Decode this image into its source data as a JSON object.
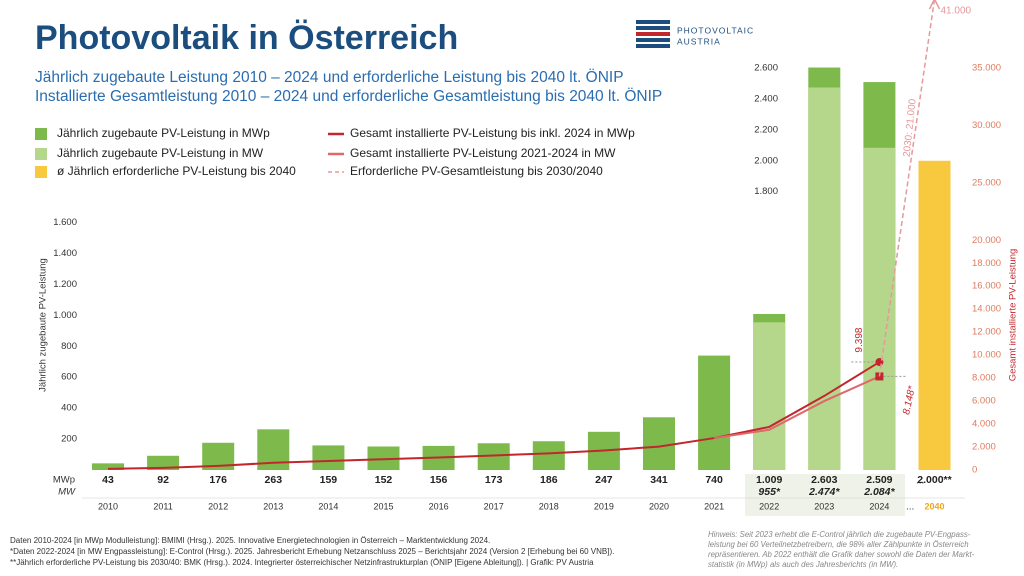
{
  "chart_data": {
    "type": "bar",
    "title": "Photovoltaik in Österreich",
    "subtitles": [
      "Jährlich zugebaute Leistung 2010 – 2024 und erforderliche Leistung bis 2040 lt. ÖNIP",
      "Installierte Gesamtleistung 2010 – 2024 und erforderliche Gesamtleistung bis 2040 lt. ÖNIP"
    ],
    "logo": [
      "PHOTOVOLTAIC",
      "AUSTRIA"
    ],
    "y_label": "Jährlich zugebaute PV-Leistung",
    "y2_label": "Gesamt installierte PV-Leistung",
    "categories": [
      "2010",
      "2011",
      "2012",
      "2013",
      "2014",
      "2015",
      "2016",
      "2017",
      "2018",
      "2019",
      "2020",
      "2021",
      "2022",
      "2023",
      "2024",
      "2040"
    ],
    "row_labels": [
      "MWp",
      "MW"
    ],
    "ellipsis": "...",
    "ylim": [
      0,
      2600
    ],
    "yticks": [
      {
        "value": 200,
        "label": "200"
      },
      {
        "value": 400,
        "label": "400"
      },
      {
        "value": 600,
        "label": "600"
      },
      {
        "value": 800,
        "label": "800"
      },
      {
        "value": 1000,
        "label": "1.000"
      },
      {
        "value": 1200,
        "label": "1.200"
      },
      {
        "value": 1400,
        "label": "1.400"
      },
      {
        "value": 1600,
        "label": "1.600"
      },
      {
        "value": 1800,
        "label": "1.800"
      },
      {
        "value": 2000,
        "label": "2.000"
      },
      {
        "value": 2200,
        "label": "2.200"
      },
      {
        "value": 2400,
        "label": "2.400"
      },
      {
        "value": 2600,
        "label": "2.600"
      }
    ],
    "y2lim": [
      0,
      35000
    ],
    "y2ticks": [
      0,
      {
        "value": 2000,
        "label": "2.000"
      },
      {
        "value": 4000,
        "label": "4.000"
      },
      {
        "value": 6000,
        "label": "6.000"
      },
      {
        "value": 8000,
        "label": "8.000"
      },
      {
        "value": 10000,
        "label": "10.000"
      },
      {
        "value": 12000,
        "label": "12.000"
      },
      {
        "value": 14000,
        "label": "14.000"
      },
      {
        "value": 16000,
        "label": "16.000"
      },
      {
        "value": 18000,
        "label": "18.000"
      },
      {
        "value": 20000,
        "label": "20.000"
      },
      {
        "value": 25000,
        "label": "25.000"
      },
      {
        "value": 30000,
        "label": "30.000"
      },
      {
        "value": 35000,
        "label": "35.000"
      }
    ],
    "grid": false,
    "series": [
      {
        "name": "Jährlich zugebaute PV-Leistung in MWp",
        "type": "bar",
        "color": "#7dba4b",
        "values": [
          43,
          92,
          176,
          263,
          159,
          152,
          156,
          173,
          186,
          247,
          341,
          740,
          1009,
          2603,
          2509,
          null
        ],
        "value_labels": [
          "43",
          "92",
          "176",
          "263",
          "159",
          "152",
          "156",
          "173",
          "186",
          "247",
          "341",
          "740",
          "1.009",
          "2.603",
          "2.509",
          null
        ]
      },
      {
        "name": "Jährlich zugebaute PV-Leistung in MW",
        "type": "bar",
        "color": "#b5d78c",
        "values": [
          null,
          null,
          null,
          null,
          null,
          null,
          null,
          null,
          null,
          null,
          null,
          null,
          955,
          2474,
          2084,
          null
        ],
        "value_labels": [
          null,
          null,
          null,
          null,
          null,
          null,
          null,
          null,
          null,
          null,
          null,
          null,
          "955*",
          "2.474*",
          "2.084*",
          null
        ]
      },
      {
        "name": "ø Jährlich erforderliche PV-Leistung bis 2040",
        "type": "bar",
        "color": "#f8c93e",
        "values": [
          null,
          null,
          null,
          null,
          null,
          null,
          null,
          null,
          null,
          null,
          null,
          null,
          null,
          null,
          null,
          2000
        ],
        "value_labels": [
          null,
          null,
          null,
          null,
          null,
          null,
          null,
          null,
          null,
          null,
          null,
          null,
          null,
          null,
          null,
          "2.000**"
        ]
      },
      {
        "name": "Gesamt installierte PV-Leistung bis inkl. 2024 in MWp",
        "type": "line",
        "axis": "y2",
        "color": "#c1272d",
        "style": "solid",
        "values": [
          95,
          187,
          363,
          626,
          785,
          937,
          1093,
          1266,
          1452,
          1699,
          2040,
          2780,
          3750,
          6450,
          9398,
          null
        ],
        "value_labels": [
          null,
          null,
          null,
          null,
          null,
          null,
          null,
          null,
          null,
          null,
          null,
          null,
          null,
          null,
          "9.398",
          null
        ]
      },
      {
        "name": "Gesamt installierte PV-Leistung 2021-2024 in MW",
        "type": "line",
        "axis": "y2",
        "color": "#e0676b",
        "style": "solid",
        "values": [
          null,
          null,
          null,
          null,
          null,
          null,
          null,
          null,
          null,
          null,
          null,
          2780,
          3500,
          6000,
          8148,
          null
        ],
        "value_labels": [
          null,
          null,
          null,
          null,
          null,
          null,
          null,
          null,
          null,
          null,
          null,
          null,
          null,
          null,
          "8.148*",
          null
        ]
      },
      {
        "name": "Erforderliche PV-Gesamtleistung bis 2030/2040",
        "type": "line",
        "axis": "y2",
        "color": "#e8979b",
        "style": "dashed",
        "values": [
          null,
          null,
          null,
          null,
          null,
          null,
          null,
          null,
          null,
          null,
          null,
          null,
          null,
          null,
          8148,
          41000
        ],
        "value_labels": [
          null,
          null,
          null,
          null,
          null,
          null,
          null,
          null,
          null,
          null,
          null,
          null,
          null,
          null,
          null,
          "41.000"
        ]
      }
    ],
    "annotations": [
      "2030: 21.000"
    ],
    "footnotes": [
      "Daten 2010-2024 [in MWp Modulleistung]: BMIMI (Hrsg.). 2025. Innovative Energietechnologien in Österreich – Marktentwicklung 2024.",
      "*Daten 2022-2024 [in MW Engpassleistung]: E-Control (Hrsg.). 2025. Jahresbericht Erhebung Netzanschluss 2025 – Berichtsjahr 2024 (Version 2 [Erhebung bei 60 VNB]).",
      "**Jährlich erforderliche PV-Leistung bis 2030/40: BMK (Hrsg.). 2024. Integrierter österreichischer Netzinfrastrukturplan (ÖNIP [Eigene Ableitung]). | Grafik: PV Austria"
    ],
    "note": [
      "Hinweis: Seit 2023 erhebt die E-Control jährlich die zugebaute PV-Engpass-",
      "leistung bei 60 Verteilnetzbetreibern, die 98% aller Zählpunkte in Österreich",
      "repräsentieren. Ab 2022 enthält die Grafik daher sowohl die Daten der Markt-",
      "statistik (in MWp) als auch des Jahresberichts (in MW)."
    ]
  }
}
